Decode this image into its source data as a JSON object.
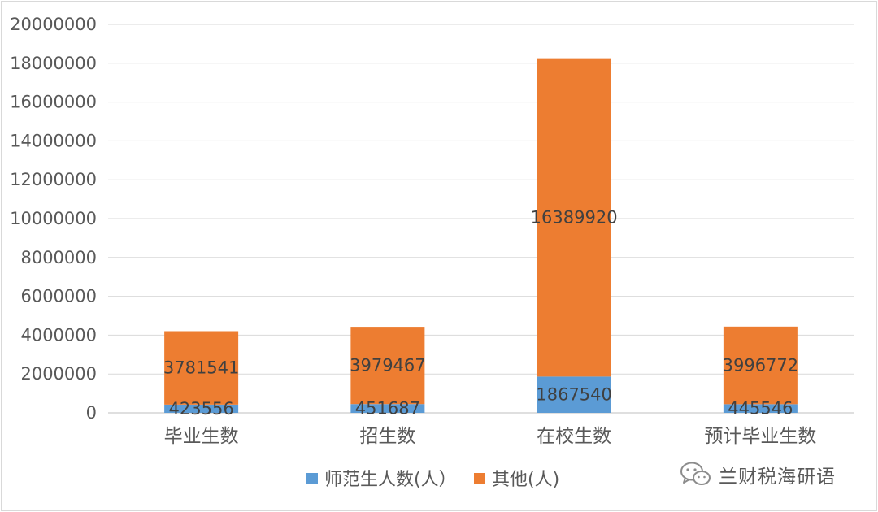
{
  "chart_data": {
    "type": "bar",
    "stacked": true,
    "categories": [
      "毕业生数",
      "招生数",
      "在校生数",
      "预计毕业生数"
    ],
    "series": [
      {
        "name": "师范生人数(人）",
        "color": "#5b9bd5",
        "values": [
          423556,
          451687,
          1867540,
          445546
        ]
      },
      {
        "name": "其他(人)",
        "color": "#ed7d31",
        "values": [
          3781541,
          3979467,
          16389920,
          3996772
        ]
      }
    ],
    "ylim": [
      0,
      20000000
    ],
    "yticks": [
      0,
      2000000,
      4000000,
      6000000,
      8000000,
      10000000,
      12000000,
      14000000,
      16000000,
      18000000,
      20000000
    ],
    "grid": true,
    "legend": "bottom",
    "data_labels": true
  },
  "watermark": {
    "text": "兰财税海研语",
    "icon": "wechat-icon"
  }
}
